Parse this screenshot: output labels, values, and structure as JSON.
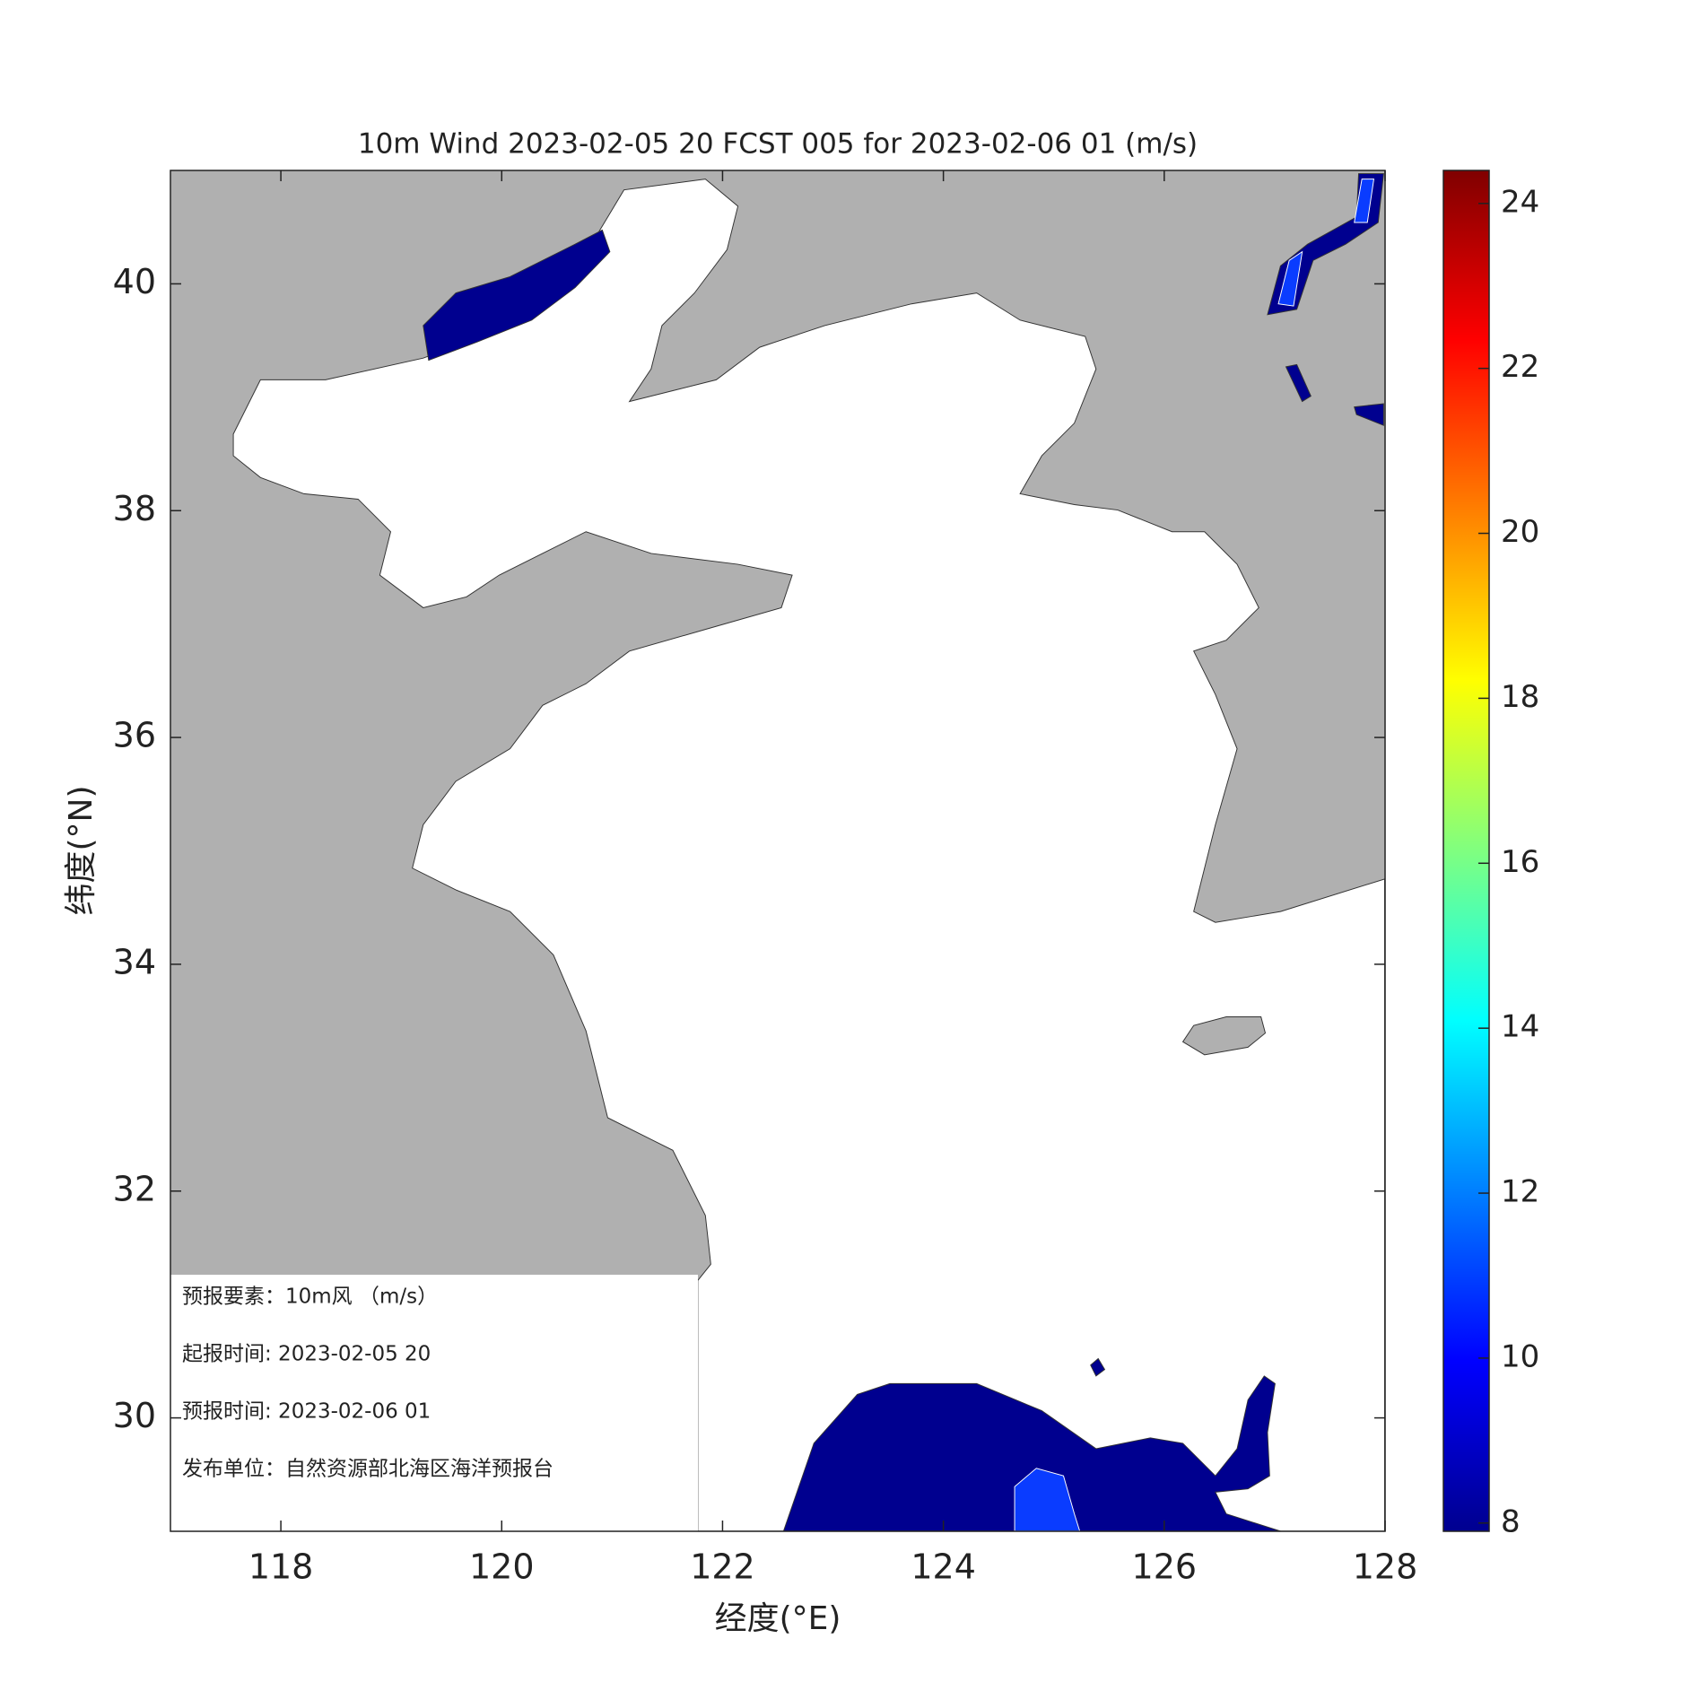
{
  "chart_data": {
    "type": "map",
    "title": "10m Wind 2023-02-05 20 FCST 005 for 2023-02-06 01 (m/s)",
    "x_label": "经度(°E)",
    "y_label": "纬度(°N)",
    "xlim": [
      117,
      128
    ],
    "xticks": [
      118,
      120,
      122,
      124,
      126,
      128
    ],
    "ylim": [
      29,
      41
    ],
    "yticks": [
      30,
      32,
      34,
      36,
      38,
      40
    ],
    "colorbar": {
      "lim": [
        7.9,
        24.4
      ],
      "ticks": [
        8,
        10,
        12,
        14,
        16,
        18,
        20,
        22,
        24
      ],
      "colormap": "jet"
    },
    "info": [
      "预报要素：10m风 （m/s）",
      "起报时间: 2023-02-05 20",
      "预报时间: 2023-02-06 01",
      "发布单位：自然资源部北海区海洋预报台"
    ]
  }
}
